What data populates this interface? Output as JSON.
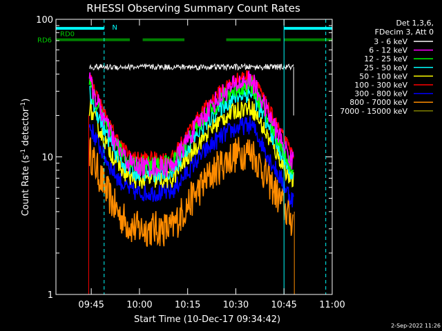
{
  "chart_data": {
    "type": "line",
    "title": "RHESSI Observing Summary Count Rates",
    "xlabel": "Start Time (10-Dec-17 09:34:42)",
    "ylabel_main": "Count Rate (s",
    "ylabel_sup1": "-1",
    "ylabel_mid": " detector",
    "ylabel_sup2": "-1",
    "ylabel_end": ")",
    "xlim_minutes": [
      -0.7,
      85.3
    ],
    "ylim": [
      1,
      100
    ],
    "yscale": "log",
    "x_ticks": [
      {
        "label": "09:45",
        "minute": 10.3
      },
      {
        "label": "10:00",
        "minute": 25.3
      },
      {
        "label": "10:15",
        "minute": 40.3
      },
      {
        "label": "10:30",
        "minute": 55.3
      },
      {
        "label": "10:45",
        "minute": 70.3
      },
      {
        "label": "11:00",
        "minute": 85.3
      }
    ],
    "y_tick_labels": [
      {
        "label": "1",
        "value": 1
      },
      {
        "label": "10",
        "value": 10
      },
      {
        "label": "100",
        "value": 100
      }
    ],
    "legend_header": [
      "Det 1,3,6,",
      "FDecim 3, Att 0"
    ],
    "series": [
      {
        "name": "3 - 6 keV",
        "color": "#ffffff",
        "kind": "flat",
        "level": 45
      },
      {
        "name": "6 - 12 keV",
        "color": "#ff00ff",
        "peak": 36,
        "trough": 8.5,
        "end": 9.5,
        "noise": 0.08
      },
      {
        "name": "12 - 25 keV",
        "color": "#00ff00",
        "peak": 33,
        "trough": 8.8,
        "end": 8.5,
        "noise": 0.07
      },
      {
        "name": "25 - 50 keV",
        "color": "#00ffff",
        "peak": 29,
        "trough": 7.7,
        "end": 7.6,
        "noise": 0.07
      },
      {
        "name": "50 - 100 keV",
        "color": "#ffff00",
        "peak": 23,
        "trough": 6.8,
        "end": 6.8,
        "noise": 0.07
      },
      {
        "name": "100 - 300 keV",
        "color": "#ff0000",
        "peak": 39,
        "trough": 9.8,
        "end": 10.8,
        "noise": 0.05
      },
      {
        "name": "300 - 800 keV",
        "color": "#0000ff",
        "peak": 17,
        "trough": 5.5,
        "end": 5.0,
        "noise": 0.07
      },
      {
        "name": "800 - 7000 keV",
        "color": "#ff8c00",
        "peak": 11,
        "trough": 3.0,
        "end": 3.5,
        "noise": 0.14
      },
      {
        "name": "7000 - 15000 keV",
        "color": "#808000",
        "peak": 1.2,
        "trough": 1.2,
        "end": 1.2,
        "noise": 0.0
      }
    ],
    "data_span_minutes": [
      9.7,
      73.3
    ],
    "flags": [
      {
        "label": "N",
        "color": "#00ffff",
        "segments": [
          [
            -0.7,
            14.3
          ],
          [
            70.3,
            85.3
          ]
        ]
      },
      {
        "label": "RD0",
        "color": "#008000",
        "segments": [
          [
            -0.7,
            -0.6
          ]
        ]
      },
      {
        "label": "RD6",
        "color": "#008000",
        "segments": [
          [
            -0.7,
            22.3
          ],
          [
            26.3,
            39.3
          ],
          [
            52.3,
            69.3
          ],
          [
            70.3,
            85.3
          ]
        ]
      }
    ],
    "night_boundaries_minutes": [
      14.3,
      70.3,
      83.3
    ],
    "footer_date": "2-Sep-2022 11:26"
  }
}
